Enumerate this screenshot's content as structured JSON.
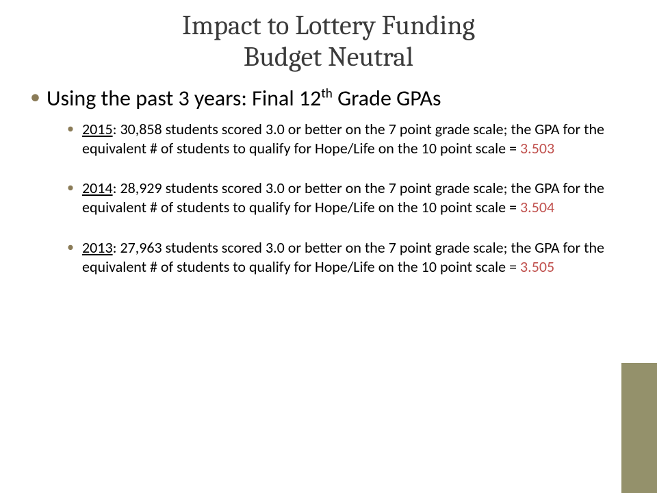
{
  "title": {
    "line1": "Impact to Lottery Funding",
    "line2": "Budget Neutral"
  },
  "colors": {
    "bullet": "#8a7b57",
    "title": "#3b3b3b",
    "highlight": "#c0504d",
    "side_accent": "#94916b",
    "background": "#ffffff",
    "text": "#000000"
  },
  "main_bullet": {
    "prefix": "Using the past 3 years:   Final 12",
    "ordinal": "th",
    "suffix": " Grade GPAs"
  },
  "years": [
    {
      "year": "2015",
      "body": ": 30,858 students scored 3.0 or better on the 7 point grade scale; the GPA for the equivalent # of students to qualify for Hope/Life on the 10 point scale = ",
      "value": "3.503"
    },
    {
      "year": "2014",
      "body": ": 28,929 students scored 3.0 or better on the 7 point grade scale; the GPA for the equivalent # of students to qualify for Hope/Life on the 10 point scale = ",
      "value": "3.504"
    },
    {
      "year": "2013",
      "body": ": 27,963 students scored 3.0 or better on the 7 point grade scale; the GPA for the equivalent # of students to qualify for Hope/Life on the 10 point scale  = ",
      "value": "3.505"
    }
  ]
}
